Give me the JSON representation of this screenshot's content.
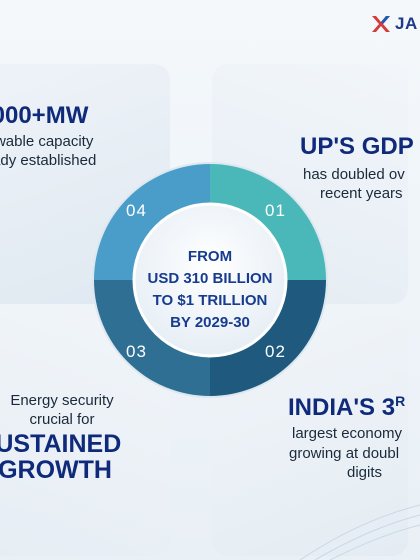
{
  "brand": {
    "logo_text": "JA"
  },
  "quadrants": {
    "top_left": {
      "headline": "000+MW",
      "line1": "ewable capacity",
      "line2": "eady established",
      "number": "04"
    },
    "top_right": {
      "headline": "UP'S GDP",
      "line1": "has doubled ov",
      "line2": "recent years",
      "number": "01"
    },
    "bottom_left": {
      "line1": "Energy security",
      "line2": "crucial for",
      "big1": "SUSTAINED",
      "big2": "GROWTH",
      "number": "03"
    },
    "bottom_right": {
      "headline": "INDIA'S 3",
      "headline_sup": "R",
      "line1": "largest economy",
      "line2": "growing at doubl",
      "line3": "digits",
      "number": "02"
    }
  },
  "center": {
    "line1": "FROM",
    "line2": "USD 310 BILLION",
    "line3": "TO $1 TRILLION",
    "line4": "BY 2029-30"
  },
  "colors": {
    "quadrant_04": "#4a9dc9",
    "quadrant_01": "#4ab8b8",
    "quadrant_03": "#2f6f93",
    "quadrant_02": "#1f5a7e",
    "headline": "#0f2a7a",
    "center_text": "#163b8f"
  },
  "icons": {
    "logo": "ja-x-logo-icon"
  }
}
